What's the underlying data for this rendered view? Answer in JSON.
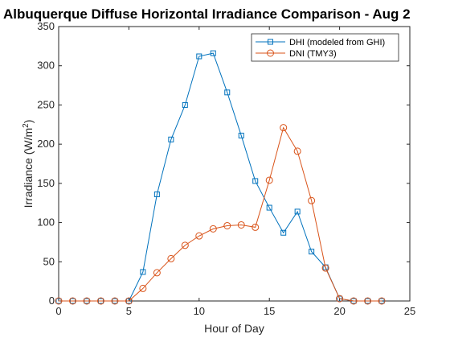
{
  "chart_data": {
    "type": "line",
    "title": "Albuquerque Diffuse Horizontal Irradiance Comparison - Aug 2",
    "xlabel": "Hour of Day",
    "ylabel_main": "Irradiance (W/m",
    "ylabel_sup": "2",
    "ylabel_close": ")",
    "xlim": [
      0,
      25
    ],
    "ylim": [
      0,
      350
    ],
    "xticks": [
      0,
      5,
      10,
      15,
      20,
      25
    ],
    "yticks": [
      0,
      50,
      100,
      150,
      200,
      250,
      300,
      350
    ],
    "grid": false,
    "legend_position": "top-right",
    "x": [
      0,
      1,
      2,
      3,
      4,
      5,
      6,
      7,
      8,
      9,
      10,
      11,
      12,
      13,
      14,
      15,
      16,
      17,
      18,
      19,
      20,
      21,
      22,
      23
    ],
    "series": [
      {
        "name": "DHI (modeled from GHI)",
        "color": "#0072BD",
        "marker": "square",
        "values": [
          0,
          0,
          0,
          0,
          0,
          0,
          37,
          136,
          206,
          250,
          312,
          316,
          266,
          211,
          153,
          119,
          87,
          114,
          63,
          43,
          3,
          0,
          0,
          0
        ]
      },
      {
        "name": "DNI (TMY3)",
        "color": "#D95319",
        "marker": "circle",
        "values": [
          0,
          0,
          0,
          0,
          0,
          0,
          16,
          36,
          54,
          71,
          83,
          92,
          96,
          97,
          94,
          154,
          221,
          191,
          128,
          42,
          3,
          0,
          0,
          0
        ]
      }
    ]
  }
}
